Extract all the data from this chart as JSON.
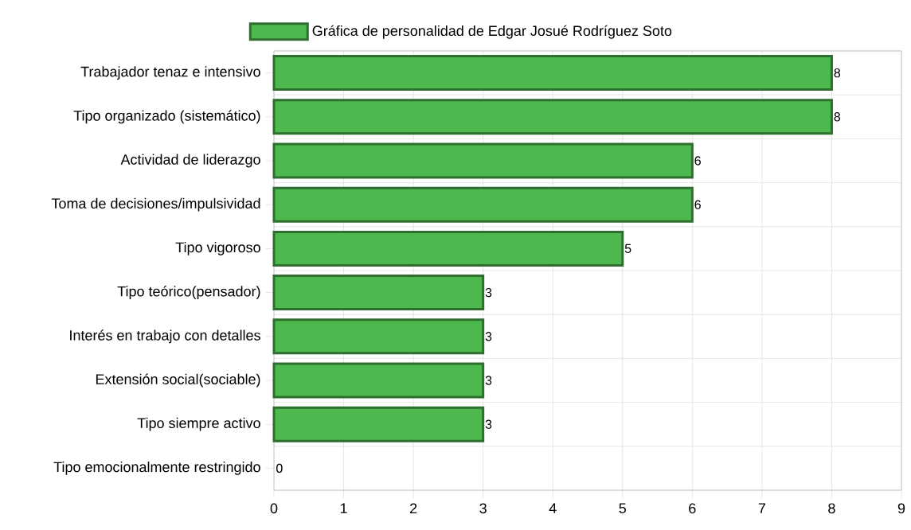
{
  "chart_data": {
    "type": "bar",
    "orientation": "horizontal",
    "categories": [
      "Trabajador tenaz e intensivo",
      "Tipo organizado (sistemático)",
      "Actividad de liderazgo",
      "Toma de decisiones/impulsividad",
      "Tipo vigoroso",
      "Tipo teórico(pensador)",
      "Interés en trabajo con detalles",
      "Extensión social(sociable)",
      "Tipo siempre activo",
      "Tipo emocionalmente restringido"
    ],
    "series": [
      {
        "name": "Gráfica de personalidad de Edgar Josué Rodríguez Soto",
        "color": "#4db84d",
        "values": [
          8,
          8,
          6,
          6,
          5,
          3,
          3,
          3,
          3,
          0
        ]
      }
    ],
    "xlim": [
      0,
      9
    ],
    "xticks": [
      0,
      1,
      2,
      3,
      4,
      5,
      6,
      7,
      8,
      9
    ],
    "grid": true,
    "legend": "top",
    "data_labels": true
  }
}
